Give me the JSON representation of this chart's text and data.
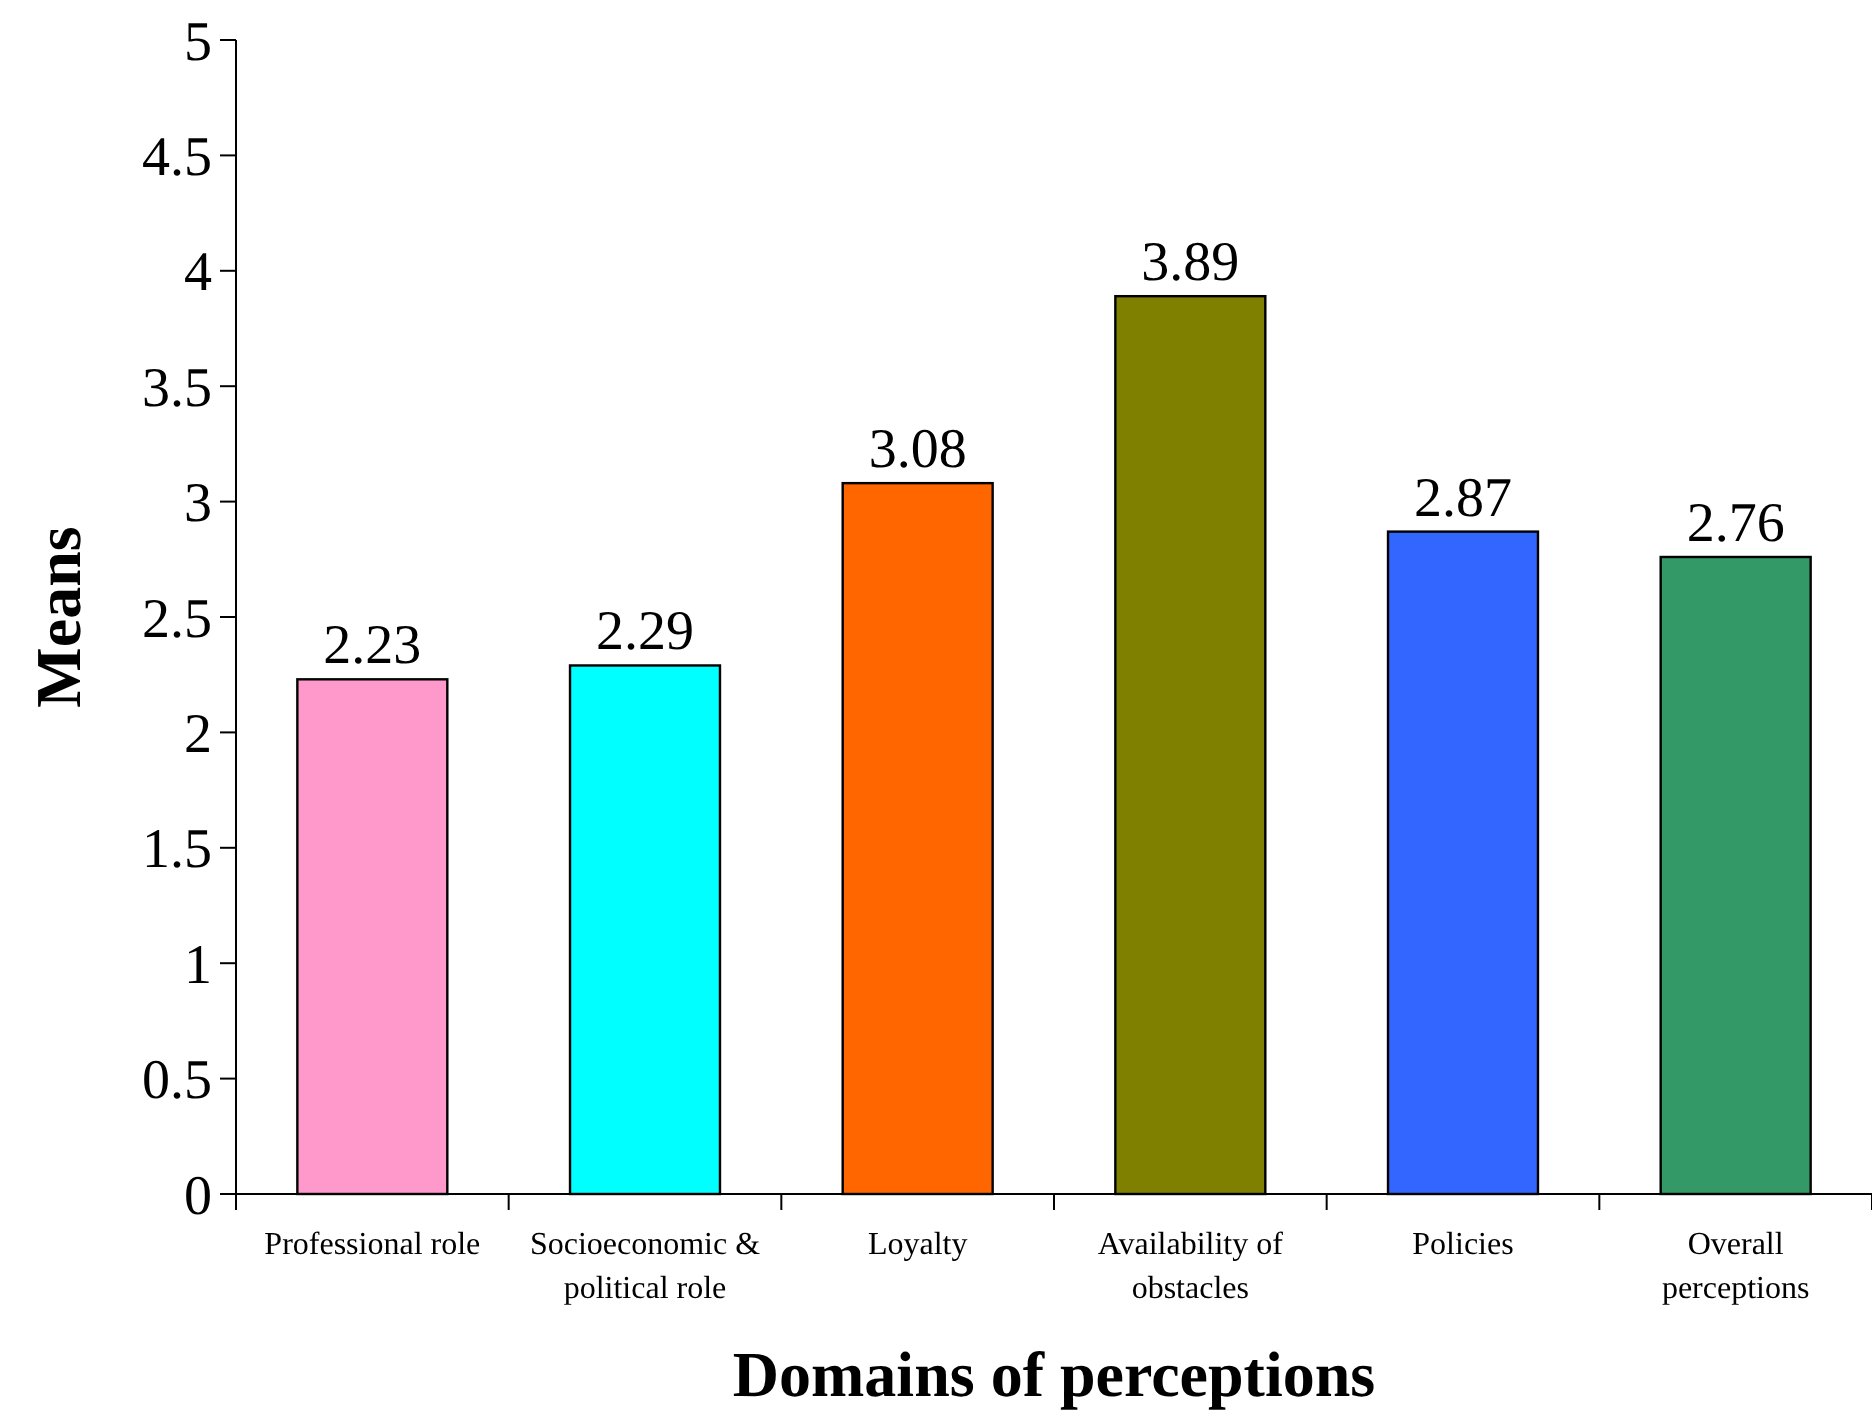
{
  "chart_data": {
    "type": "bar",
    "xlabel": "Domains of perceptions",
    "ylabel": "Means",
    "categories": [
      "Professional role",
      "Socioeconomic & political role",
      "Loyalty",
      "Availability of obstacles",
      "Policies",
      "Overall perceptions"
    ],
    "values": [
      2.23,
      2.29,
      3.08,
      3.89,
      2.87,
      2.76
    ],
    "colors": [
      "#ff99cc",
      "#00ffff",
      "#ff6600",
      "#808000",
      "#3366ff",
      "#339966"
    ],
    "ylim": [
      0,
      5
    ],
    "yticks": [
      0,
      0.5,
      1,
      1.5,
      2,
      2.5,
      3,
      3.5,
      4,
      4.5,
      5
    ],
    "grid": false,
    "data_labels": true
  }
}
